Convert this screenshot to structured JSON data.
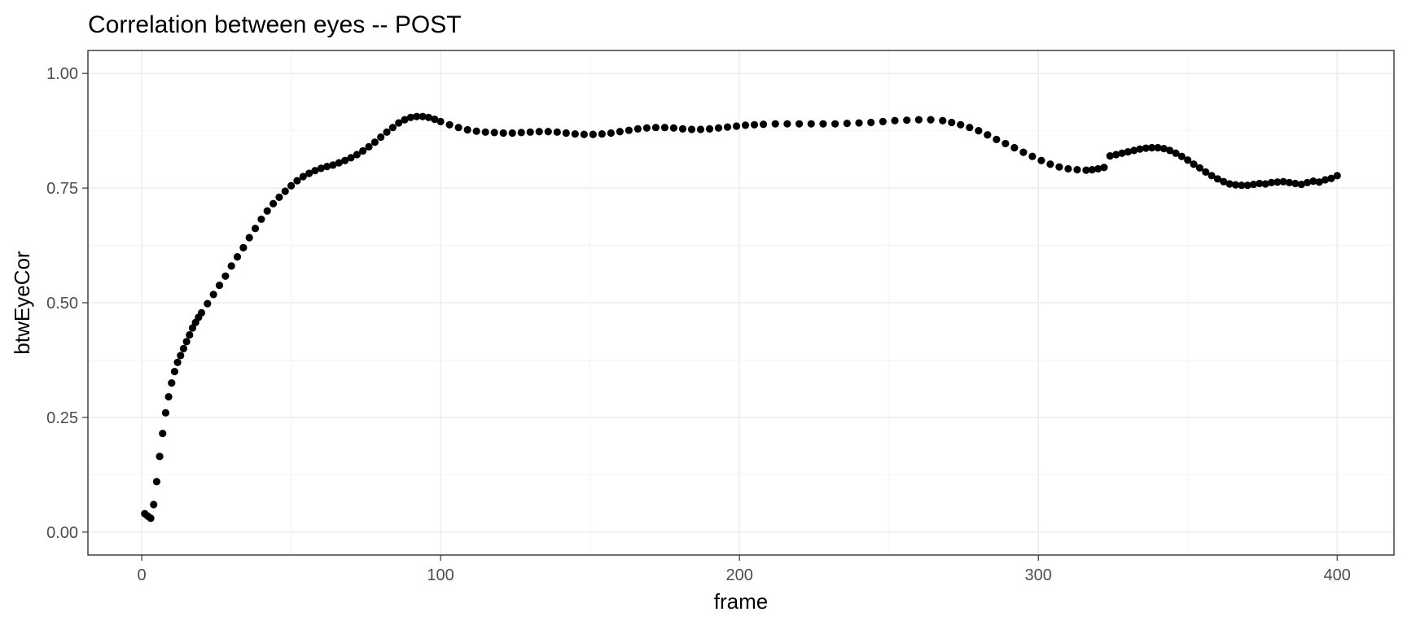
{
  "chart_data": {
    "type": "scatter",
    "title": "Correlation between eyes -- POST",
    "xlabel": "frame",
    "ylabel": "btwEyeCor",
    "xlim": [
      -18,
      419
    ],
    "ylim": [
      -0.05,
      1.05
    ],
    "x_ticks": [
      0,
      100,
      200,
      300,
      400
    ],
    "x_tick_labels": [
      "0",
      "100",
      "200",
      "300",
      "400"
    ],
    "y_ticks": [
      0,
      0.25,
      0.5,
      0.75,
      1
    ],
    "y_tick_labels": [
      "0.00",
      "0.25",
      "0.50",
      "0.75",
      "1.00"
    ],
    "grid": true,
    "theme": "bw",
    "point_color": "#000000",
    "series": [
      {
        "points": [
          [
            1,
            0.04
          ],
          [
            2,
            0.035
          ],
          [
            3,
            0.03
          ],
          [
            4,
            0.06
          ],
          [
            5,
            0.11
          ],
          [
            6,
            0.165
          ],
          [
            7,
            0.215
          ],
          [
            8,
            0.26
          ],
          [
            9,
            0.295
          ],
          [
            10,
            0.325
          ],
          [
            11,
            0.35
          ],
          [
            12,
            0.37
          ],
          [
            13,
            0.385
          ],
          [
            14,
            0.4
          ],
          [
            15,
            0.415
          ],
          [
            16,
            0.43
          ],
          [
            17,
            0.445
          ],
          [
            18,
            0.457
          ],
          [
            19,
            0.468
          ],
          [
            20,
            0.478
          ],
          [
            22,
            0.498
          ],
          [
            24,
            0.518
          ],
          [
            26,
            0.538
          ],
          [
            28,
            0.558
          ],
          [
            30,
            0.58
          ],
          [
            32,
            0.6
          ],
          [
            34,
            0.62
          ],
          [
            36,
            0.642
          ],
          [
            38,
            0.662
          ],
          [
            40,
            0.682
          ],
          [
            42,
            0.7
          ],
          [
            44,
            0.716
          ],
          [
            46,
            0.73
          ],
          [
            48,
            0.743
          ],
          [
            50,
            0.755
          ],
          [
            52,
            0.766
          ],
          [
            54,
            0.775
          ],
          [
            56,
            0.782
          ],
          [
            58,
            0.788
          ],
          [
            60,
            0.793
          ],
          [
            62,
            0.797
          ],
          [
            64,
            0.8
          ],
          [
            66,
            0.805
          ],
          [
            68,
            0.81
          ],
          [
            70,
            0.816
          ],
          [
            72,
            0.823
          ],
          [
            74,
            0.831
          ],
          [
            76,
            0.84
          ],
          [
            78,
            0.85
          ],
          [
            80,
            0.861
          ],
          [
            82,
            0.872
          ],
          [
            84,
            0.882
          ],
          [
            86,
            0.892
          ],
          [
            88,
            0.899
          ],
          [
            90,
            0.904
          ],
          [
            92,
            0.906
          ],
          [
            94,
            0.906
          ],
          [
            96,
            0.904
          ],
          [
            98,
            0.9
          ],
          [
            100,
            0.895
          ],
          [
            103,
            0.888
          ],
          [
            106,
            0.882
          ],
          [
            109,
            0.877
          ],
          [
            112,
            0.874
          ],
          [
            115,
            0.872
          ],
          [
            118,
            0.871
          ],
          [
            121,
            0.87
          ],
          [
            124,
            0.87
          ],
          [
            127,
            0.871
          ],
          [
            130,
            0.872
          ],
          [
            133,
            0.873
          ],
          [
            136,
            0.873
          ],
          [
            139,
            0.872
          ],
          [
            142,
            0.87
          ],
          [
            145,
            0.868
          ],
          [
            148,
            0.867
          ],
          [
            151,
            0.867
          ],
          [
            154,
            0.868
          ],
          [
            157,
            0.87
          ],
          [
            160,
            0.873
          ],
          [
            163,
            0.876
          ],
          [
            166,
            0.879
          ],
          [
            169,
            0.881
          ],
          [
            172,
            0.882
          ],
          [
            175,
            0.882
          ],
          [
            178,
            0.881
          ],
          [
            181,
            0.879
          ],
          [
            184,
            0.878
          ],
          [
            187,
            0.878
          ],
          [
            190,
            0.879
          ],
          [
            193,
            0.881
          ],
          [
            196,
            0.883
          ],
          [
            199,
            0.885
          ],
          [
            202,
            0.887
          ],
          [
            205,
            0.888
          ],
          [
            208,
            0.889
          ],
          [
            212,
            0.89
          ],
          [
            216,
            0.89
          ],
          [
            220,
            0.89
          ],
          [
            224,
            0.89
          ],
          [
            228,
            0.89
          ],
          [
            232,
            0.89
          ],
          [
            236,
            0.891
          ],
          [
            240,
            0.892
          ],
          [
            244,
            0.893
          ],
          [
            248,
            0.895
          ],
          [
            252,
            0.897
          ],
          [
            256,
            0.898
          ],
          [
            260,
            0.899
          ],
          [
            264,
            0.899
          ],
          [
            268,
            0.897
          ],
          [
            271,
            0.893
          ],
          [
            274,
            0.888
          ],
          [
            277,
            0.882
          ],
          [
            280,
            0.875
          ],
          [
            283,
            0.866
          ],
          [
            286,
            0.856
          ],
          [
            289,
            0.847
          ],
          [
            292,
            0.838
          ],
          [
            295,
            0.828
          ],
          [
            298,
            0.819
          ],
          [
            301,
            0.81
          ],
          [
            304,
            0.802
          ],
          [
            307,
            0.796
          ],
          [
            310,
            0.792
          ],
          [
            313,
            0.79
          ],
          [
            316,
            0.789
          ],
          [
            318,
            0.79
          ],
          [
            320,
            0.792
          ],
          [
            322,
            0.795
          ],
          [
            324,
            0.82
          ],
          [
            326,
            0.823
          ],
          [
            328,
            0.826
          ],
          [
            330,
            0.829
          ],
          [
            332,
            0.832
          ],
          [
            334,
            0.835
          ],
          [
            336,
            0.837
          ],
          [
            338,
            0.838
          ],
          [
            340,
            0.838
          ],
          [
            342,
            0.836
          ],
          [
            344,
            0.832
          ],
          [
            346,
            0.826
          ],
          [
            348,
            0.819
          ],
          [
            350,
            0.811
          ],
          [
            352,
            0.802
          ],
          [
            354,
            0.794
          ],
          [
            356,
            0.785
          ],
          [
            358,
            0.777
          ],
          [
            360,
            0.77
          ],
          [
            362,
            0.764
          ],
          [
            364,
            0.759
          ],
          [
            366,
            0.757
          ],
          [
            368,
            0.756
          ],
          [
            370,
            0.756
          ],
          [
            372,
            0.758
          ],
          [
            374,
            0.76
          ],
          [
            376,
            0.759
          ],
          [
            378,
            0.762
          ],
          [
            380,
            0.763
          ],
          [
            382,
            0.764
          ],
          [
            384,
            0.762
          ],
          [
            386,
            0.76
          ],
          [
            388,
            0.758
          ],
          [
            390,
            0.762
          ],
          [
            392,
            0.765
          ],
          [
            394,
            0.763
          ],
          [
            396,
            0.768
          ],
          [
            398,
            0.771
          ],
          [
            400,
            0.777
          ]
        ]
      }
    ]
  }
}
